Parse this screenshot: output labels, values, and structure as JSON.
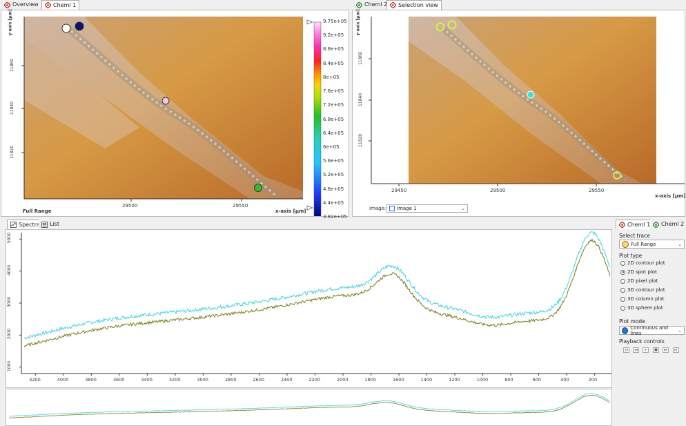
{
  "left_view": {
    "tabs": [
      {
        "label": "Overview"
      },
      {
        "label": "Cheml 1"
      }
    ],
    "y_axis_label": "y-axis [µm]",
    "y_ticks": [
      "11860",
      "11840",
      "11820"
    ],
    "x_ticks": [
      "29500",
      "29550"
    ],
    "x_axis_label": "x-axis [µm]",
    "trace_label": "Full Range",
    "colorbar_labels": [
      "9.75e+05",
      "9.2e+05",
      "8.8e+05",
      "8.4e+05",
      "8e+05",
      "7.6e+05",
      "7.2e+05",
      "6.8e+05",
      "6.4e+05",
      "6e+05",
      "5.6e+05",
      "5.2e+05",
      "4.8e+05",
      "4.4e+05",
      "3.82e+05"
    ],
    "colors": {
      "spot1": "#ffffff",
      "spot2": "#0a1470",
      "spot3": "#f0c8e8",
      "spot4": "#27c32d"
    }
  },
  "right_view": {
    "tabs": [
      {
        "label": "Cheml 2"
      },
      {
        "label": "Selection view"
      }
    ],
    "y_axis_label": "y-axis [µm]",
    "y_ticks": [
      "11860",
      "11840",
      "11820"
    ],
    "x_ticks": [
      "29450",
      "29500",
      "29550"
    ],
    "x_axis_label": "x-axis [µm]",
    "image_label": "Image:",
    "image_select": "Image 1"
  },
  "spectra": {
    "tabs": [
      {
        "label": "Spectra"
      },
      {
        "label": "List"
      }
    ],
    "y_ticks": [
      "5000",
      "4000",
      "3000",
      "2000",
      "1000"
    ],
    "x_ticks": [
      "4200",
      "4000",
      "3800",
      "3600",
      "3400",
      "3200",
      "3000",
      "2800",
      "2600",
      "2400",
      "2200",
      "2000",
      "1800",
      "1600",
      "1400",
      "1200",
      "1000",
      "800",
      "600",
      "400",
      "200"
    ],
    "colors": {
      "series_a": "#3fd3dc",
      "series_b": "#7a7a1a"
    }
  },
  "right_panel": {
    "tabs": [
      {
        "label": "Cheml 1"
      },
      {
        "label": "Cheml 2"
      }
    ],
    "select_trace_label": "Select trace",
    "trace_value": "Full Range",
    "plot_type_label": "Plot type",
    "plot_types": [
      {
        "label": "2D contour plot"
      },
      {
        "label": "2D spot plot"
      },
      {
        "label": "2D pixel plot"
      },
      {
        "label": "3D contour plot"
      },
      {
        "label": "3D column plot"
      },
      {
        "label": "3D sphere plot"
      }
    ],
    "selected_plot_type": "2D spot plot",
    "plot_mode_label": "Plot mode",
    "plot_mode_value": "Continuous and lines",
    "playback_label": "Playback controls"
  }
}
